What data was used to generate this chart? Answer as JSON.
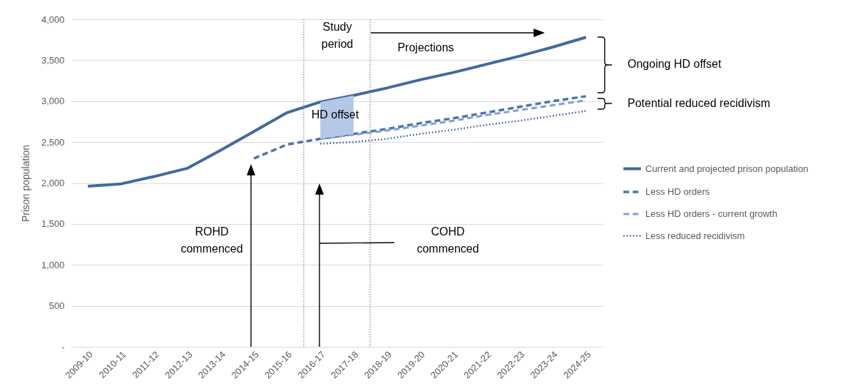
{
  "chart_data": {
    "type": "line",
    "ylabel": "Prison population",
    "categories": [
      "2009-10",
      "2010-11",
      "2011-12",
      "2012-13",
      "2013-14",
      "2014-15",
      "2015-16",
      "2016-17",
      "2017-18",
      "2018-19",
      "2019-20",
      "2020-21",
      "2021-22",
      "2022-23",
      "2023-24",
      "2024-25"
    ],
    "series": [
      {
        "name": "Current and projected prison population",
        "color": "#41699e",
        "line_style": "solid",
        "values": [
          1960,
          1990,
          2080,
          2180,
          2400,
          2630,
          2860,
          2990,
          3070,
          3160,
          3260,
          3350,
          3450,
          3550,
          3660,
          3780
        ]
      },
      {
        "name": "Less HD orders",
        "color": "#4a74b0",
        "line_style": "dashed",
        "values": [
          null,
          null,
          null,
          null,
          null,
          2300,
          2470,
          2540,
          2600,
          2660,
          2730,
          2790,
          2860,
          2930,
          3000,
          3060
        ],
        "lower": [
          null,
          null,
          null,
          null,
          null,
          null,
          null,
          2540,
          2600,
          null,
          null,
          null,
          null,
          null,
          null,
          null
        ],
        "upper": [
          null,
          null,
          null,
          null,
          null,
          null,
          null,
          2990,
          3070,
          null,
          null,
          null,
          null,
          null,
          null,
          null
        ]
      },
      {
        "name": "Less HD orders - current growth",
        "color": "#7e9fd0",
        "line_style": "dashed",
        "values": [
          null,
          null,
          null,
          null,
          null,
          null,
          null,
          2540,
          2590,
          2640,
          2700,
          2760,
          2830,
          2890,
          2950,
          3010
        ]
      },
      {
        "name": "Less reduced recidivism",
        "color": "#2f5597",
        "line_style": "dotted",
        "values": [
          null,
          null,
          null,
          null,
          null,
          null,
          null,
          2480,
          2500,
          2540,
          2600,
          2650,
          2710,
          2760,
          2820,
          2880
        ]
      }
    ],
    "ylim": [
      0,
      4000
    ],
    "yticks": [
      {
        "value": 0,
        "label": "-"
      },
      {
        "value": 500,
        "label": "500"
      },
      {
        "value": 1000,
        "label": "1,000"
      },
      {
        "value": 1500,
        "label": "1,500"
      },
      {
        "value": 2000,
        "label": "2,000"
      },
      {
        "value": 2500,
        "label": "2,500"
      },
      {
        "value": 3000,
        "label": "3,000"
      },
      {
        "value": 3500,
        "label": "3,500"
      },
      {
        "value": 4000,
        "label": "4,000"
      }
    ],
    "grid": "y",
    "legend": "right",
    "annotations": [
      "Study period",
      "Projections",
      "HD offset",
      "Ongoing HD offset",
      "Potential reduced recidivism",
      "ROHD commenced",
      "COHD commenced"
    ]
  }
}
